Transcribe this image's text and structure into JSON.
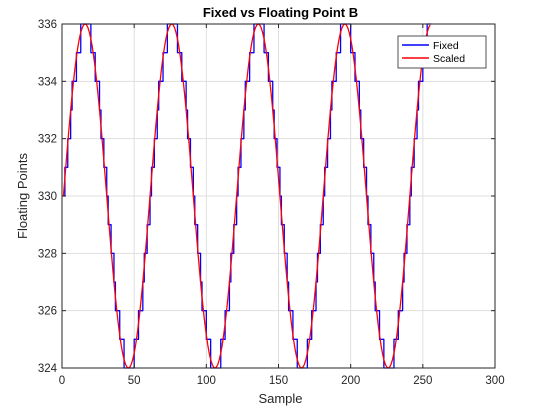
{
  "chart_data": {
    "type": "line",
    "title": "Fixed vs Floating Point B",
    "xlabel": "Sample",
    "ylabel": "Floating Points",
    "xlim": [
      0,
      300
    ],
    "ylim": [
      324,
      336
    ],
    "xticks": [
      0,
      50,
      100,
      150,
      200,
      250,
      300
    ],
    "yticks": [
      324,
      326,
      328,
      330,
      332,
      334,
      336
    ],
    "grid": true,
    "legend_position": "top-right",
    "sample_range": [
      1,
      255
    ],
    "signal_model": {
      "offset": 330,
      "amplitude": 6,
      "period_samples": 60
    },
    "series": [
      {
        "name": "Fixed",
        "color": "#0000ff",
        "style": "stairs",
        "quantization": 1
      },
      {
        "name": "Scaled",
        "color": "#ff0000",
        "style": "line"
      }
    ]
  }
}
